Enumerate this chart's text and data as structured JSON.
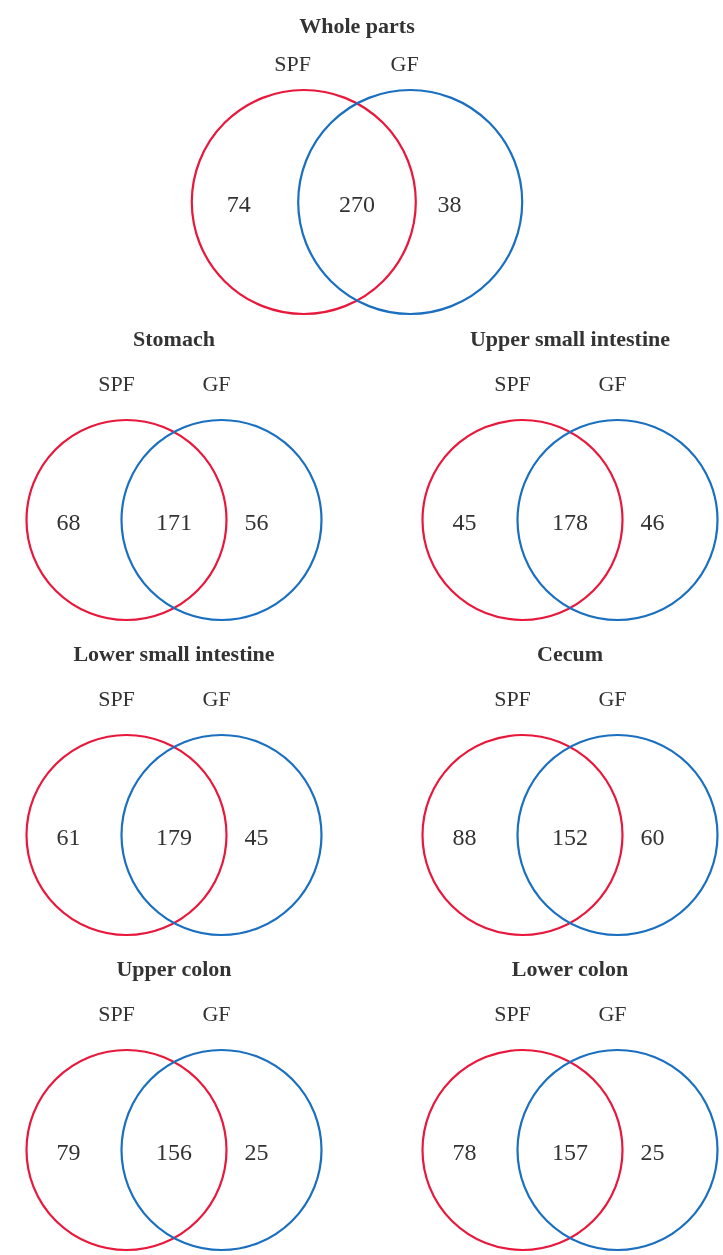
{
  "chart_data": [
    {
      "type": "other",
      "title": "Whole parts",
      "annotations": [
        "SPF",
        "GF"
      ],
      "categories": [
        null,
        null,
        null
      ],
      "values": [
        74,
        270,
        38
      ],
      "data_labels": true
    },
    {
      "type": "other",
      "title": "Stomach",
      "annotations": [
        "SPF",
        "GF"
      ],
      "categories": [
        null,
        null,
        null
      ],
      "values": [
        68,
        171,
        56
      ],
      "data_labels": true
    },
    {
      "type": "other",
      "title": "Upper small intestine",
      "annotations": [
        "SPF",
        "GF"
      ],
      "categories": [
        null,
        null,
        null
      ],
      "values": [
        45,
        178,
        46
      ],
      "data_labels": true
    },
    {
      "type": "other",
      "title": "Lower small intestine",
      "annotations": [
        "SPF",
        "GF"
      ],
      "categories": [
        null,
        null,
        null
      ],
      "values": [
        61,
        179,
        45
      ],
      "data_labels": true
    },
    {
      "type": "other",
      "title": "Cecum",
      "annotations": [
        "SPF",
        "GF"
      ],
      "categories": [
        null,
        null,
        null
      ],
      "values": [
        88,
        152,
        60
      ],
      "data_labels": true
    },
    {
      "type": "other",
      "title": "Upper colon",
      "annotations": [
        "SPF",
        "GF"
      ],
      "categories": [
        null,
        null,
        null
      ],
      "values": [
        79,
        156,
        25
      ],
      "data_labels": true
    },
    {
      "type": "other",
      "title": "Lower colon",
      "annotations": [
        "SPF",
        "GF"
      ],
      "categories": [
        null,
        null,
        null
      ],
      "values": [
        78,
        157,
        25
      ],
      "data_labels": true
    }
  ]
}
